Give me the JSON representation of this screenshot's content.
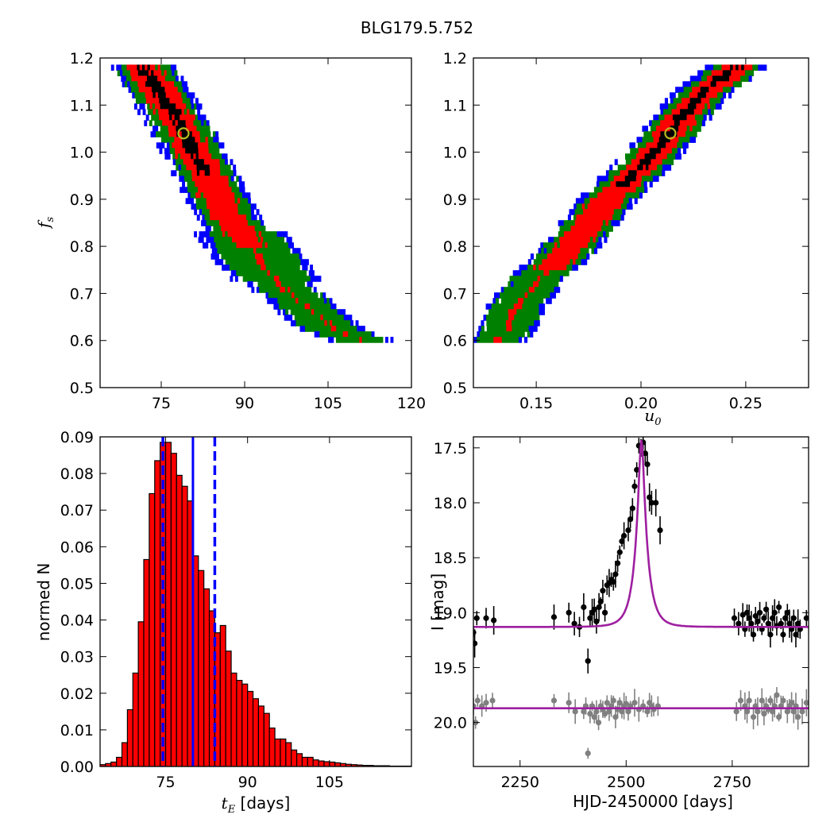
{
  "title": "BLG179.5.752",
  "colors": {
    "one_sigma": "#000000",
    "two_sigma": "#ff0000",
    "three_sigma": "#008000",
    "four_sigma": "#0000ff",
    "histogram_bar": "#ff0000",
    "marker": "#bbbb22",
    "model_curve": "#9e1fa0",
    "data_primary": "#000000",
    "data_secondary": "#808080",
    "lines": "#0000ff"
  },
  "chart_data": [
    {
      "type": "heatmap",
      "panel": "top-left",
      "xlabel": "",
      "ylabel": "f_s",
      "ylabel_main": "f",
      "ylabel_sub": "s",
      "xlim": [
        64,
        120
      ],
      "ylim": [
        0.5,
        1.2
      ],
      "xticks": [
        75,
        90,
        105,
        120
      ],
      "yticks": [
        "0.5",
        "0.6",
        "0.7",
        "0.8",
        "0.9",
        "1.0",
        "1.1",
        "1.2"
      ],
      "best_fit": {
        "x": 79,
        "y": 1.04
      },
      "contour_levels": [
        "one_sigma",
        "two_sigma",
        "three_sigma",
        "four_sigma"
      ],
      "ridge": [
        [
          71.5,
          1.18
        ],
        [
          76,
          1.1
        ],
        [
          79,
          1.04
        ],
        [
          83,
          0.95
        ],
        [
          87,
          0.86
        ],
        [
          91,
          0.8
        ],
        [
          96,
          0.72
        ],
        [
          101,
          0.67
        ],
        [
          106,
          0.62
        ],
        [
          111,
          0.6
        ]
      ],
      "half_width": {
        "one_sigma": 1.0,
        "two_sigma": 3.0,
        "three_sigma": 4.6,
        "four_sigma": 6.0
      },
      "one_sigma_max_y": 0.95,
      "two_sigma_min_y": 0.8
    },
    {
      "type": "heatmap",
      "panel": "top-right",
      "xlabel": "u_0",
      "xlabel_main": "u",
      "xlabel_sub": "0",
      "ylabel": "",
      "xlim": [
        0.12,
        0.28
      ],
      "ylim": [
        0.5,
        1.2
      ],
      "xticks": [
        "0.15",
        "0.20",
        "0.25"
      ],
      "yticks": [
        "0.5",
        "0.6",
        "0.7",
        "0.8",
        "0.9",
        "1.0",
        "1.1",
        "1.2"
      ],
      "best_fit": {
        "x": 0.214,
        "y": 1.04
      },
      "contour_levels": [
        "one_sigma",
        "two_sigma",
        "three_sigma",
        "four_sigma"
      ],
      "ridge": [
        [
          0.128,
          0.59
        ],
        [
          0.135,
          0.62
        ],
        [
          0.14,
          0.67
        ],
        [
          0.15,
          0.73
        ],
        [
          0.16,
          0.77
        ],
        [
          0.17,
          0.82
        ],
        [
          0.18,
          0.88
        ],
        [
          0.19,
          0.93
        ],
        [
          0.2,
          0.97
        ],
        [
          0.21,
          1.02
        ],
        [
          0.22,
          1.08
        ],
        [
          0.23,
          1.13
        ],
        [
          0.245,
          1.18
        ]
      ],
      "half_width": {
        "one_sigma": 0.0025,
        "two_sigma": 0.0075,
        "three_sigma": 0.0115,
        "four_sigma": 0.0145
      },
      "one_sigma_min_y": 0.93,
      "two_sigma_min_y": 0.75
    },
    {
      "type": "bar",
      "panel": "bottom-left",
      "xlabel": "t_E  [days]",
      "xlabel_main": "t",
      "xlabel_sub": "E",
      "xlabel_unit": " [days]",
      "ylabel": "normed N",
      "xlim": [
        63,
        120
      ],
      "ylim": [
        0,
        0.09
      ],
      "xticks": [
        75,
        90,
        105
      ],
      "yticks": [
        "0.00",
        "0.01",
        "0.02",
        "0.03",
        "0.04",
        "0.05",
        "0.06",
        "0.07",
        "0.08",
        "0.09"
      ],
      "bin_start": 63,
      "bin_width": 1,
      "values": [
        0.0005,
        0.0008,
        0.0012,
        0.0025,
        0.0065,
        0.0155,
        0.0255,
        0.0395,
        0.0565,
        0.0745,
        0.0835,
        0.0885,
        0.0885,
        0.0855,
        0.0795,
        0.0765,
        0.0725,
        0.0575,
        0.0535,
        0.0485,
        0.0425,
        0.0365,
        0.0385,
        0.0315,
        0.0255,
        0.0235,
        0.0225,
        0.0205,
        0.0185,
        0.0165,
        0.0145,
        0.0105,
        0.0075,
        0.0075,
        0.0065,
        0.0045,
        0.0035,
        0.0025,
        0.0025,
        0.0018,
        0.0015,
        0.0013,
        0.0012,
        0.001,
        0.0008,
        0.0006,
        0.0005,
        0.0004,
        0.0003,
        0.0003,
        0.0002,
        0.0002,
        0.0002,
        0.0001,
        0.0001,
        0.0001,
        0.0001
      ],
      "median": 80,
      "sigma_lines": [
        74.5,
        84
      ]
    },
    {
      "type": "line",
      "panel": "bottom-right",
      "xlabel": "HJD-2450000 [days]",
      "ylabel": "I [mag]",
      "xlim": [
        2140,
        2930
      ],
      "ylim": [
        20.4,
        17.4
      ],
      "xticks": [
        "2250",
        "2500",
        "2750"
      ],
      "yticks": [
        "17.5",
        "18.0",
        "18.5",
        "19.0",
        "19.5",
        "20.0"
      ],
      "model": {
        "baseline": 19.13,
        "peak_mag": 17.43,
        "t0": 2536,
        "tE": 80,
        "u0": 0.214,
        "fs": 1.04
      },
      "reference_baseline": 19.87,
      "series": [
        {
          "role": "primary",
          "x": [
            2140,
            2143,
            2148,
            2170,
            2188,
            2330,
            2365,
            2378,
            2390,
            2400,
            2410,
            2415,
            2420,
            2425,
            2430,
            2436,
            2440,
            2445,
            2450,
            2455,
            2460,
            2465,
            2470,
            2475,
            2480,
            2485,
            2490,
            2495,
            2505,
            2510,
            2515,
            2520,
            2525,
            2530,
            2535,
            2540,
            2545,
            2550,
            2555,
            2560,
            2570,
            2580,
            2755,
            2765,
            2775,
            2780,
            2785,
            2790,
            2795,
            2800,
            2805,
            2810,
            2815,
            2820,
            2825,
            2830,
            2835,
            2840,
            2845,
            2850,
            2855,
            2860,
            2865,
            2870,
            2875,
            2880,
            2885,
            2890,
            2895,
            2900,
            2905,
            2910,
            2925
          ],
          "y": [
            19.18,
            19.28,
            19.05,
            19.05,
            19.07,
            19.04,
            19.0,
            19.1,
            19.13,
            18.95,
            19.44,
            19.05,
            19.0,
            18.97,
            19.08,
            18.95,
            18.9,
            18.8,
            19.0,
            18.75,
            18.73,
            18.7,
            18.72,
            18.65,
            18.55,
            18.45,
            18.35,
            18.3,
            18.25,
            18.15,
            18.05,
            17.85,
            17.7,
            17.48,
            17.5,
            17.45,
            17.55,
            17.65,
            17.95,
            18.0,
            18.0,
            18.25,
            19.05,
            19.1,
            19.02,
            19.15,
            19.0,
            19.05,
            19.1,
            19.2,
            19.03,
            19.08,
            19.0,
            19.15,
            19.05,
            18.97,
            19.1,
            19.2,
            19.05,
            19.0,
            19.12,
            18.95,
            19.1,
            19.2,
            19.05,
            19.0,
            19.1,
            19.15,
            19.05,
            19.2,
            19.1,
            19.15,
            19.05
          ]
        },
        {
          "role": "secondary",
          "x": [
            2140,
            2145,
            2150,
            2160,
            2170,
            2185,
            2330,
            2365,
            2380,
            2400,
            2405,
            2410,
            2415,
            2420,
            2425,
            2430,
            2435,
            2440,
            2445,
            2450,
            2455,
            2460,
            2465,
            2470,
            2475,
            2480,
            2485,
            2490,
            2495,
            2500,
            2505,
            2510,
            2520,
            2530,
            2540,
            2550,
            2555,
            2560,
            2565,
            2575,
            2760,
            2770,
            2780,
            2785,
            2790,
            2800,
            2805,
            2810,
            2820,
            2825,
            2830,
            2835,
            2840,
            2845,
            2850,
            2855,
            2860,
            2865,
            2870,
            2880,
            2885,
            2890,
            2895,
            2900,
            2905,
            2915,
            2925
          ],
          "y": [
            19.85,
            20.0,
            19.8,
            19.85,
            19.82,
            19.8,
            19.8,
            19.82,
            19.9,
            19.9,
            19.85,
            20.28,
            19.92,
            19.85,
            19.95,
            19.9,
            20.0,
            19.85,
            19.88,
            19.92,
            19.82,
            19.9,
            19.85,
            19.8,
            19.95,
            19.88,
            19.82,
            19.9,
            19.85,
            19.83,
            19.9,
            19.85,
            19.82,
            19.88,
            19.85,
            19.9,
            19.82,
            19.85,
            19.88,
            19.85,
            19.9,
            19.8,
            19.85,
            19.9,
            19.8,
            19.95,
            19.85,
            19.9,
            19.8,
            19.92,
            19.85,
            19.88,
            19.8,
            19.9,
            19.85,
            19.75,
            19.95,
            19.85,
            19.8,
            19.9,
            19.85,
            19.82,
            19.9,
            19.85,
            19.95,
            19.9,
            19.82
          ]
        }
      ]
    }
  ]
}
